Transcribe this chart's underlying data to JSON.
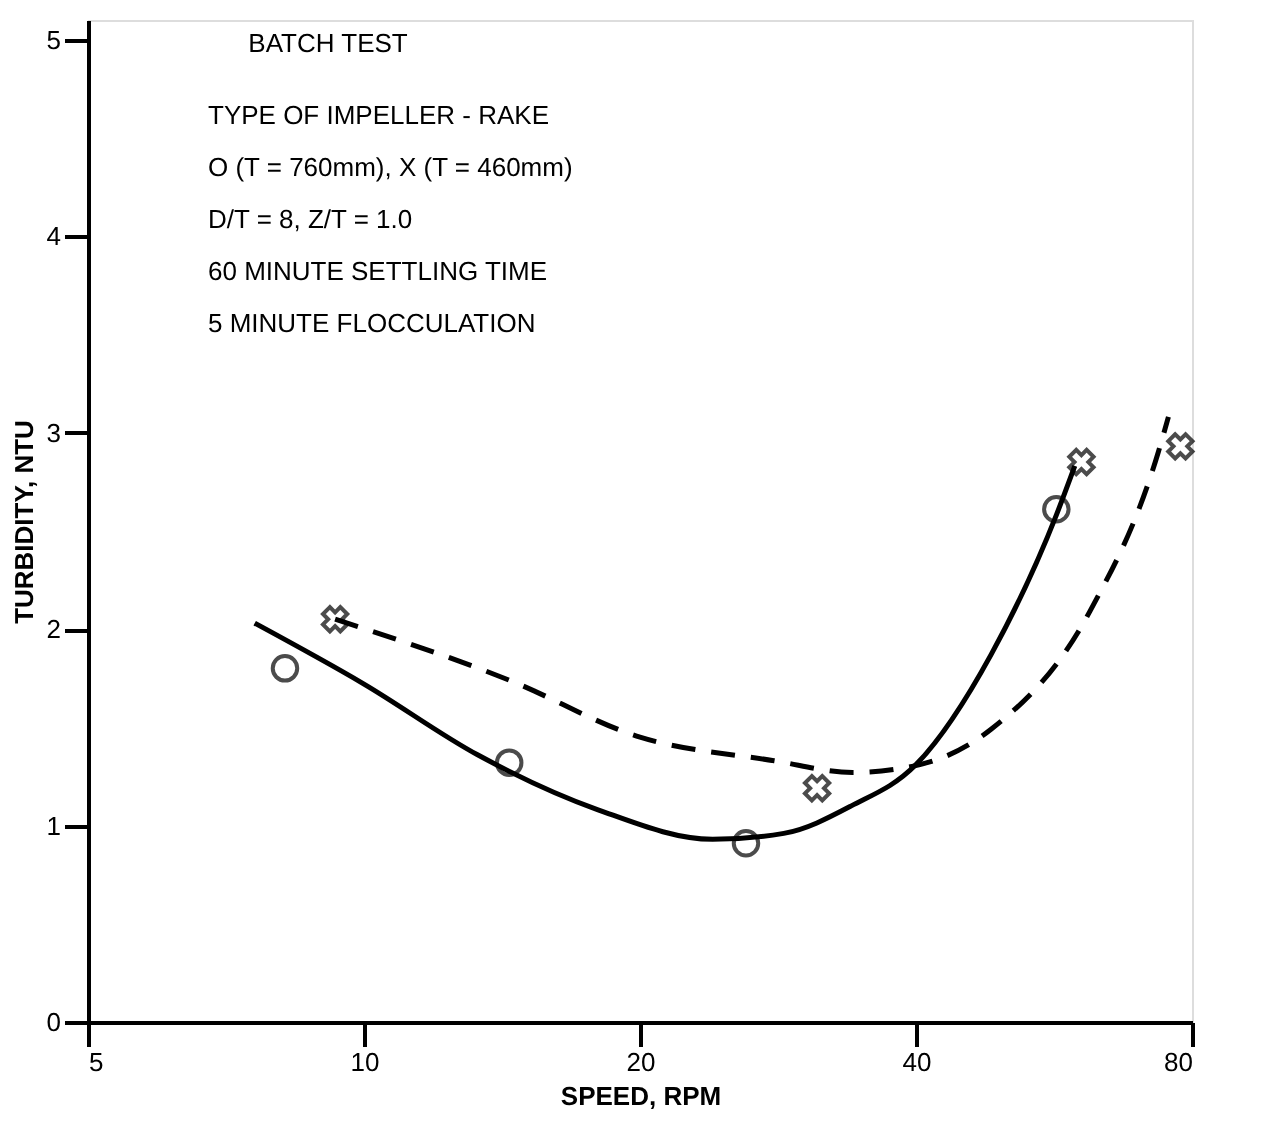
{
  "chart_data": {
    "type": "scatter",
    "xlabel": "SPEED, RPM",
    "ylabel": "TURBIDITY, NTU",
    "log": "x",
    "xlim": [
      5,
      80
    ],
    "ylim": [
      0,
      5.1
    ],
    "xticks": [
      5,
      10,
      20,
      40,
      80
    ],
    "yticks": [
      0,
      1,
      2,
      3,
      4,
      5
    ],
    "grid": false,
    "annotations": [
      "BATCH TEST",
      "TYPE OF IMPELLER - RAKE",
      "O (T = 760mm), X (T = 460mm)",
      "D/T = 8, Z/T = 1.0",
      "60 MINUTE SETTLING TIME",
      "5 MINUTE FLOCCULATION"
    ],
    "series": [
      {
        "marker": "circle",
        "color": "#000000",
        "x": [
          8.2,
          14.4,
          26.1,
          56.9
        ],
        "values": [
          1.8,
          1.32,
          0.91,
          2.61
        ]
      },
      {
        "marker": "cross",
        "color": "#000000",
        "x": [
          9.3,
          31.2,
          60.6,
          77.7
        ],
        "values": [
          2.05,
          1.19,
          2.85,
          2.93
        ]
      },
      {
        "type": "line",
        "marker": "none",
        "line_style": "solid",
        "color": "#000000",
        "x": [
          7.6,
          10,
          13.3,
          18,
          24,
          28.7,
          34,
          40,
          48.3,
          56.9,
          59.6
        ],
        "values": [
          2.03,
          1.72,
          1.36,
          1.08,
          0.93,
          0.96,
          1.1,
          1.31,
          1.87,
          2.58,
          2.83
        ]
      },
      {
        "type": "line",
        "marker": "none",
        "line_style": "dashed",
        "color": "#000000",
        "x": [
          9.3,
          14.4,
          20,
          28,
          34.1,
          40.4,
          48.3,
          61.9,
          73.5,
          75.4
        ],
        "values": [
          2.05,
          1.74,
          1.45,
          1.33,
          1.27,
          1.31,
          1.49,
          2.09,
          2.9,
          3.08
        ]
      }
    ]
  }
}
